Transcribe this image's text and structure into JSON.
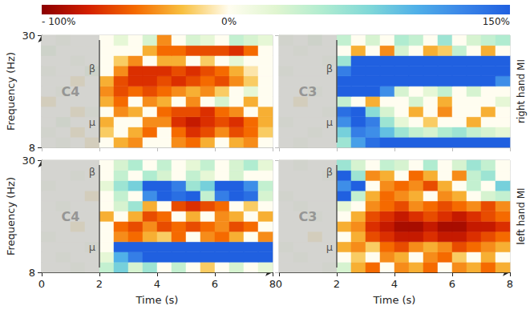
{
  "chart_data": [
    {
      "type": "heatmap",
      "channel": "C4",
      "y_label": "Frequency (Hz)",
      "xlim": [
        0,
        8
      ],
      "ylim": [
        8,
        30
      ],
      "xticks": [
        0,
        2,
        4,
        6,
        8
      ],
      "yticks": [
        8,
        30
      ],
      "tick_labels": "y",
      "x_bins": [
        0,
        0.5,
        1,
        1.5,
        2,
        2.5,
        3,
        3.5,
        4,
        4.5,
        5,
        5.5,
        6,
        6.5,
        7,
        7.5,
        8
      ],
      "y_bins": [
        8,
        10,
        12,
        14,
        16,
        18,
        20,
        22,
        24,
        26,
        28,
        30
      ],
      "reference_interval": [
        0,
        2
      ],
      "bands": [
        {
          "label": "β",
          "freq": 23.5
        },
        {
          "label": "μ",
          "freq": 13
        }
      ],
      "cells": [
        [
          0,
          10,
          0,
          -10,
          0,
          -30,
          -40,
          0,
          0,
          -40,
          -50,
          -30,
          0,
          -30,
          -40,
          0
        ],
        [
          10,
          0,
          -10,
          0,
          -20,
          0,
          -30,
          -50,
          0,
          -50,
          -70,
          -60,
          -40,
          -60,
          -50,
          -20
        ],
        [
          0,
          20,
          0,
          0,
          -30,
          0,
          0,
          -40,
          -40,
          -70,
          -80,
          -70,
          -60,
          -70,
          -50,
          -30
        ],
        [
          0,
          0,
          -10,
          10,
          0,
          -40,
          -30,
          0,
          -50,
          -60,
          -60,
          -70,
          -50,
          -40,
          0,
          -30
        ],
        [
          -10,
          0,
          0,
          0,
          -30,
          -50,
          0,
          -40,
          -30,
          0,
          -40,
          0,
          30,
          0,
          -30,
          0
        ],
        [
          0,
          10,
          0,
          0,
          -40,
          -60,
          -50,
          -60,
          -50,
          -40,
          -30,
          -40,
          -20,
          0,
          20,
          0
        ],
        [
          0,
          0,
          -10,
          0,
          -30,
          -60,
          -70,
          -70,
          -60,
          -70,
          -60,
          -50,
          -60,
          -40,
          -20,
          0
        ],
        [
          10,
          0,
          0,
          20,
          0,
          -40,
          -70,
          -70,
          -70,
          -60,
          -70,
          -60,
          -50,
          -30,
          -10,
          0
        ],
        [
          0,
          0,
          10,
          0,
          0,
          -20,
          -40,
          0,
          -30,
          -30,
          0,
          -20,
          0,
          20,
          0,
          0
        ],
        [
          20,
          0,
          0,
          0,
          0,
          0,
          0,
          -30,
          -50,
          -50,
          -60,
          -60,
          -60,
          -70,
          -50,
          0
        ],
        [
          0,
          10,
          0,
          0,
          0,
          20,
          0,
          30,
          -40,
          0,
          30,
          20,
          0,
          40,
          30,
          20
        ]
      ]
    },
    {
      "type": "heatmap",
      "channel": "C3",
      "row_label": "right hand MI",
      "xlim": [
        0,
        8
      ],
      "ylim": [
        8,
        30
      ],
      "xticks": [
        0,
        2,
        4,
        6,
        8
      ],
      "yticks": [
        8,
        30
      ],
      "tick_labels": false,
      "x_bins": [
        0,
        0.5,
        1,
        1.5,
        2,
        2.5,
        3,
        3.5,
        4,
        4.5,
        5,
        5.5,
        6,
        6.5,
        7,
        7.5,
        8
      ],
      "y_bins": [
        8,
        10,
        12,
        14,
        16,
        18,
        20,
        22,
        24,
        26,
        28,
        30
      ],
      "reference_interval": [
        0,
        2
      ],
      "bands": [
        {
          "label": "β",
          "freq": 23.5
        },
        {
          "label": "μ",
          "freq": 13
        }
      ],
      "cells": [
        [
          0,
          10,
          0,
          0,
          60,
          110,
          140,
          150,
          150,
          150,
          150,
          150,
          150,
          150,
          150,
          150
        ],
        [
          0,
          0,
          10,
          0,
          80,
          130,
          120,
          90,
          60,
          40,
          30,
          50,
          60,
          40,
          30,
          20
        ],
        [
          10,
          0,
          0,
          0,
          120,
          150,
          130,
          60,
          20,
          0,
          -20,
          0,
          0,
          -30,
          0,
          0
        ],
        [
          0,
          0,
          0,
          10,
          140,
          150,
          70,
          30,
          0,
          -30,
          0,
          -40,
          0,
          0,
          -30,
          0
        ],
        [
          0,
          -10,
          0,
          0,
          40,
          0,
          -30,
          0,
          0,
          30,
          0,
          -30,
          0,
          0,
          0,
          20
        ],
        [
          0,
          0,
          10,
          0,
          150,
          150,
          150,
          120,
          30,
          0,
          20,
          40,
          0,
          30,
          0,
          0
        ],
        [
          0,
          0,
          0,
          0,
          150,
          150,
          150,
          150,
          150,
          150,
          150,
          150,
          150,
          150,
          150,
          120
        ],
        [
          10,
          0,
          0,
          0,
          130,
          150,
          150,
          150,
          150,
          150,
          150,
          150,
          150,
          150,
          150,
          150
        ],
        [
          0,
          0,
          0,
          10,
          60,
          150,
          150,
          150,
          150,
          150,
          150,
          150,
          150,
          150,
          150,
          150
        ],
        [
          0,
          10,
          0,
          0,
          0,
          -30,
          0,
          -40,
          30,
          0,
          -30,
          -20,
          40,
          0,
          -30,
          0
        ],
        [
          10,
          0,
          20,
          0,
          40,
          0,
          30,
          0,
          50,
          40,
          0,
          60,
          0,
          30,
          40,
          50
        ]
      ]
    },
    {
      "type": "heatmap",
      "channel": "C4",
      "y_label": "Frequency (Hz)",
      "x_label": "Time (s)",
      "xlim": [
        0,
        8
      ],
      "ylim": [
        8,
        30
      ],
      "xticks": [
        0,
        2,
        4,
        6,
        8
      ],
      "yticks": [
        8,
        30
      ],
      "tick_labels": true,
      "x_bins": [
        0,
        0.5,
        1,
        1.5,
        2,
        2.5,
        3,
        3.5,
        4,
        4.5,
        5,
        5.5,
        6,
        6.5,
        7,
        7.5,
        8
      ],
      "y_bins": [
        8,
        10,
        12,
        14,
        16,
        18,
        20,
        22,
        24,
        26,
        28,
        30
      ],
      "reference_interval": [
        0,
        2
      ],
      "bands": [
        {
          "label": "β",
          "freq": 27.7
        },
        {
          "label": "μ",
          "freq": 13
        }
      ],
      "cells": [
        [
          0,
          0,
          10,
          0,
          40,
          80,
          30,
          60,
          0,
          40,
          0,
          -20,
          0,
          30,
          0,
          20
        ],
        [
          0,
          10,
          0,
          0,
          20,
          100,
          130,
          150,
          150,
          150,
          150,
          150,
          150,
          150,
          150,
          150
        ],
        [
          0,
          0,
          0,
          10,
          0,
          150,
          150,
          150,
          150,
          150,
          150,
          150,
          150,
          150,
          150,
          150
        ],
        [
          10,
          0,
          0,
          0,
          0,
          -40,
          -50,
          -30,
          -20,
          -50,
          0,
          -40,
          -50,
          -30,
          0,
          -40
        ],
        [
          0,
          0,
          -10,
          0,
          0,
          -50,
          -60,
          -40,
          -60,
          -50,
          -60,
          -50,
          -40,
          -60,
          -50,
          0
        ],
        [
          0,
          0,
          0,
          0,
          -30,
          0,
          -30,
          -60,
          -50,
          0,
          -30,
          0,
          -40,
          -30,
          0,
          -30
        ],
        [
          0,
          10,
          0,
          0,
          0,
          30,
          60,
          -30,
          0,
          -60,
          -70,
          -60,
          -50,
          0,
          -20,
          0
        ],
        [
          0,
          0,
          0,
          -10,
          0,
          40,
          0,
          120,
          150,
          140,
          150,
          40,
          130,
          150,
          140,
          30
        ],
        [
          10,
          0,
          0,
          0,
          20,
          60,
          80,
          150,
          150,
          130,
          60,
          80,
          150,
          150,
          120,
          40
        ],
        [
          0,
          0,
          10,
          0,
          0,
          40,
          0,
          50,
          30,
          0,
          40,
          20,
          0,
          30,
          0,
          0
        ],
        [
          0,
          0,
          0,
          0,
          0,
          30,
          50,
          0,
          40,
          0,
          20,
          40,
          0,
          30,
          50,
          20
        ]
      ]
    },
    {
      "type": "heatmap",
      "channel": "C3",
      "row_label": "left hand MI",
      "x_label": "Time (s)",
      "xlim": [
        0,
        8
      ],
      "ylim": [
        8,
        30
      ],
      "xticks": [
        0,
        2,
        4,
        6,
        8
      ],
      "yticks": [
        8,
        30
      ],
      "tick_labels": "x",
      "x_bins": [
        0,
        0.5,
        1,
        1.5,
        2,
        2.5,
        3,
        3.5,
        4,
        4.5,
        5,
        5.5,
        6,
        6.5,
        7,
        7.5,
        8
      ],
      "y_bins": [
        8,
        10,
        12,
        14,
        16,
        18,
        20,
        22,
        24,
        26,
        28,
        30
      ],
      "reference_interval": [
        0,
        2
      ],
      "bands": [
        {
          "label": "β",
          "freq": 27.7
        },
        {
          "label": "μ",
          "freq": 13
        }
      ],
      "cells": [
        [
          0,
          0,
          0,
          10,
          30,
          -30,
          -50,
          0,
          -40,
          -30,
          -50,
          0,
          -40,
          -30,
          -50,
          -30
        ],
        [
          0,
          10,
          0,
          0,
          0,
          -20,
          0,
          -40,
          -30,
          0,
          -40,
          -50,
          -20,
          0,
          -30,
          0
        ],
        [
          10,
          0,
          0,
          0,
          -30,
          -40,
          -20,
          -50,
          -60,
          -40,
          -30,
          -40,
          -60,
          -50,
          -40,
          -30
        ],
        [
          0,
          0,
          -10,
          0,
          0,
          -30,
          -60,
          -70,
          -80,
          -80,
          -70,
          -80,
          -80,
          -70,
          -60,
          -50
        ],
        [
          0,
          0,
          0,
          0,
          -30,
          -40,
          -70,
          -80,
          -90,
          -90,
          -80,
          -90,
          -90,
          -80,
          -80,
          -70
        ],
        [
          0,
          0,
          10,
          0,
          0,
          -30,
          -60,
          -70,
          -80,
          -70,
          -60,
          -70,
          -80,
          -70,
          -60,
          -50
        ],
        [
          0,
          10,
          0,
          0,
          20,
          0,
          -40,
          -50,
          -60,
          -40,
          -50,
          -60,
          -50,
          -40,
          -60,
          -40
        ],
        [
          10,
          0,
          0,
          0,
          150,
          40,
          -30,
          -50,
          -40,
          -30,
          0,
          -40,
          -30,
          0,
          30,
          40
        ],
        [
          0,
          0,
          0,
          0,
          120,
          150,
          0,
          -40,
          -50,
          -40,
          -60,
          -30,
          0,
          40,
          0,
          80
        ],
        [
          0,
          0,
          0,
          10,
          150,
          60,
          -40,
          -30,
          0,
          -50,
          -30,
          0,
          -40,
          40,
          60,
          0
        ],
        [
          0,
          10,
          0,
          0,
          60,
          30,
          0,
          40,
          30,
          0,
          50,
          0,
          30,
          60,
          40,
          0
        ]
      ]
    }
  ],
  "color_bar": {
    "range": [
      -100,
      150
    ],
    "ticks": [
      {
        "value": -100,
        "label": "- 100%"
      },
      {
        "value": 0,
        "label": "0%"
      },
      {
        "value": 150,
        "label": "150%"
      }
    ]
  }
}
